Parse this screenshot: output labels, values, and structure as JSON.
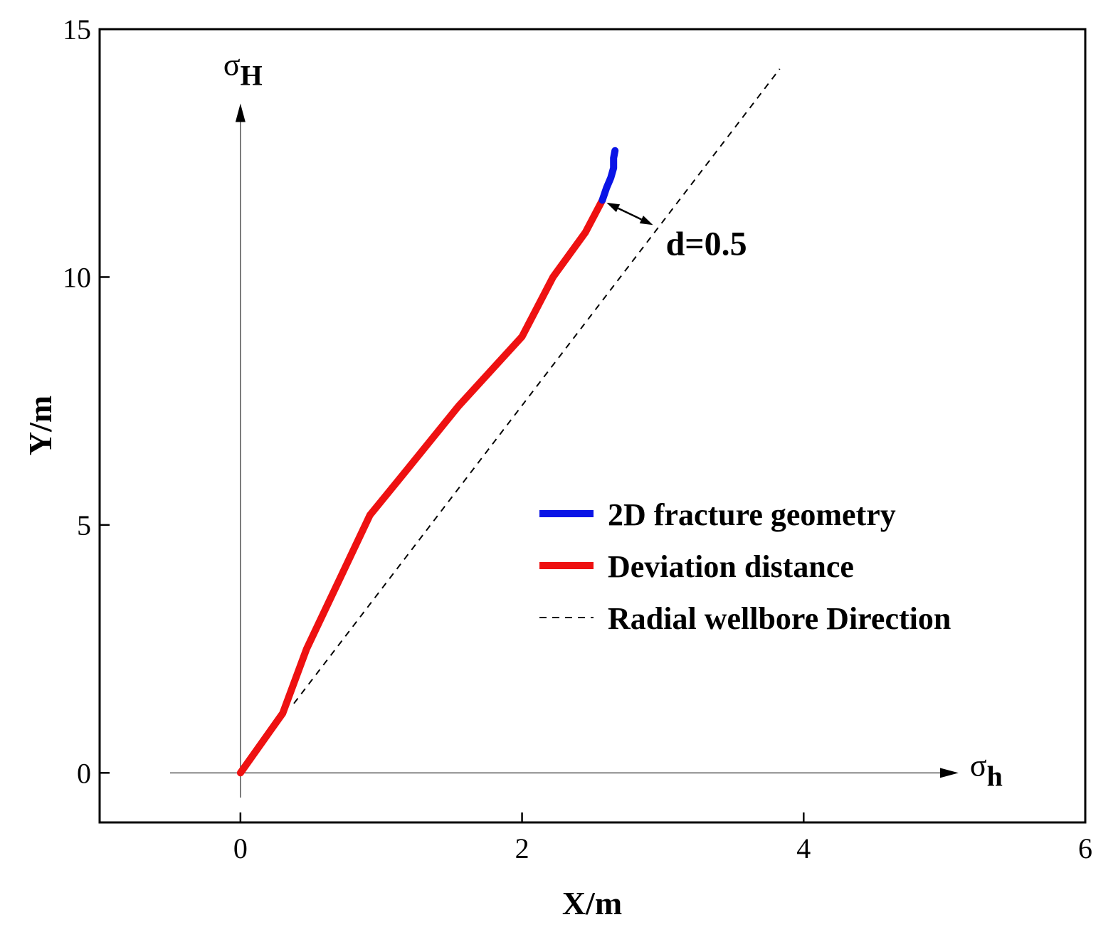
{
  "chart_data": {
    "type": "line",
    "xlabel": "X/m",
    "ylabel": "Y/m",
    "xlim": [
      -1,
      6
    ],
    "ylim": [
      -1,
      15
    ],
    "xticks": [
      0,
      2,
      4,
      6
    ],
    "yticks": [
      0,
      5,
      10,
      15
    ],
    "grid": false,
    "legend_position": "lower-right",
    "series": [
      {
        "name": "2D fracture geometry",
        "color": "#0a14e6",
        "style": "solid-thick",
        "points": [
          [
            2.57,
            11.55
          ],
          [
            2.6,
            11.8
          ],
          [
            2.63,
            12.0
          ],
          [
            2.65,
            12.2
          ],
          [
            2.65,
            12.4
          ],
          [
            2.66,
            12.55
          ]
        ]
      },
      {
        "name": "Deviation distance",
        "color": "#ee1111",
        "style": "solid-thick",
        "points": [
          [
            0.0,
            0.0
          ],
          [
            0.3,
            1.2
          ],
          [
            0.47,
            2.5
          ],
          [
            0.72,
            4.0
          ],
          [
            0.92,
            5.2
          ],
          [
            1.15,
            6.0
          ],
          [
            1.55,
            7.4
          ],
          [
            2.0,
            8.8
          ],
          [
            2.22,
            10.0
          ],
          [
            2.45,
            10.9
          ],
          [
            2.57,
            11.55
          ]
        ]
      },
      {
        "name": "Radial wellbore Direction",
        "color": "#000000",
        "style": "dashed",
        "points": [
          [
            0.38,
            1.4
          ],
          [
            3.83,
            14.2
          ]
        ]
      }
    ],
    "annotations": [
      {
        "text": "d=0.5",
        "from": [
          2.6,
          11.5
        ],
        "to": [
          2.93,
          11.05
        ]
      }
    ],
    "stress_axes": {
      "horizontal": {
        "symbol": "σ",
        "subscript": "h"
      },
      "vertical": {
        "symbol": "σ",
        "subscript": "H"
      }
    }
  }
}
